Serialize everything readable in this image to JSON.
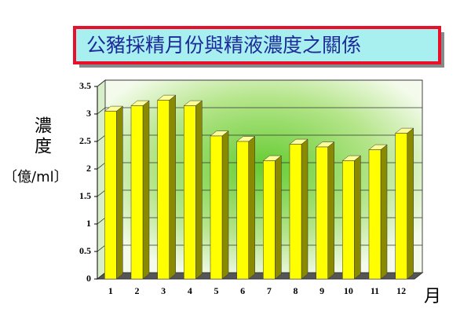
{
  "chart_data": {
    "type": "bar",
    "title": "公豬採精月份與精液濃度之關係",
    "y_label": "濃度",
    "y_unit": "〔億/ml〕",
    "x_label": "月",
    "categories": [
      "1",
      "2",
      "3",
      "4",
      "5",
      "6",
      "7",
      "8",
      "9",
      "10",
      "11",
      "12"
    ],
    "values": [
      3.05,
      3.15,
      3.25,
      3.15,
      2.6,
      2.5,
      2.15,
      2.45,
      2.4,
      2.15,
      2.35,
      2.65
    ],
    "color": "#ffff00",
    "ylim": [
      0,
      3.5
    ],
    "yticks": [
      0,
      0.5,
      1,
      1.5,
      2,
      2.5,
      3,
      3.5
    ],
    "grid": true
  }
}
